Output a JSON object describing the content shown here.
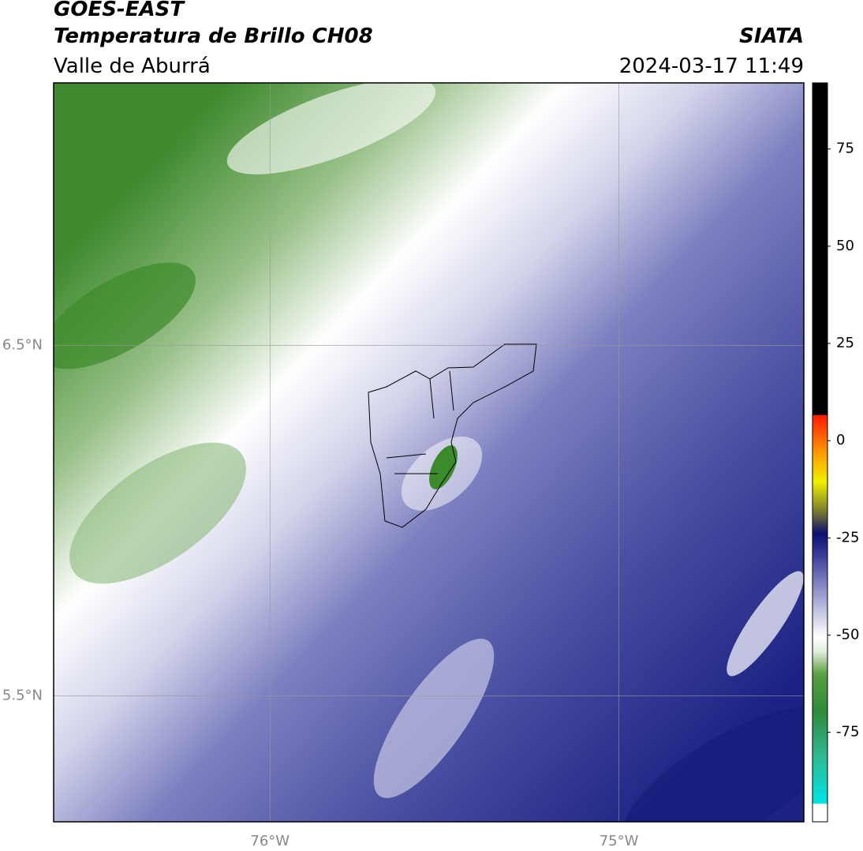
{
  "chart_data": {
    "type": "map",
    "title": "GOES-EAST",
    "subtitle": "Temperatura de Brillo CH08",
    "region": "Valle de Aburrá",
    "source": "SIATA",
    "datetime": "2024-03-17 11:49",
    "xlim": [
      -76.62,
      -74.47
    ],
    "ylim": [
      5.14,
      7.25
    ],
    "xticks": [
      {
        "value": -76,
        "label": "76°W"
      },
      {
        "value": -75,
        "label": "75°W"
      }
    ],
    "yticks": [
      {
        "value": 6.5,
        "label": "6.5°N"
      },
      {
        "value": 5.5,
        "label": "5.5°N"
      }
    ],
    "grid": true,
    "colorbar": {
      "lim": [
        -98,
        92
      ],
      "ticks": [
        75,
        50,
        25,
        0,
        -25,
        -50,
        -75
      ]
    }
  }
}
